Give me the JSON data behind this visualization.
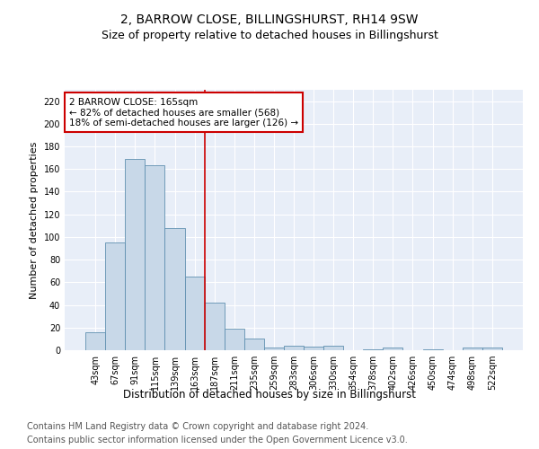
{
  "title": "2, BARROW CLOSE, BILLINGSHURST, RH14 9SW",
  "subtitle": "Size of property relative to detached houses in Billingshurst",
  "xlabel": "Distribution of detached houses by size in Billingshurst",
  "ylabel": "Number of detached properties",
  "categories": [
    "43sqm",
    "67sqm",
    "91sqm",
    "115sqm",
    "139sqm",
    "163sqm",
    "187sqm",
    "211sqm",
    "235sqm",
    "259sqm",
    "283sqm",
    "306sqm",
    "330sqm",
    "354sqm",
    "378sqm",
    "402sqm",
    "426sqm",
    "450sqm",
    "474sqm",
    "498sqm",
    "522sqm"
  ],
  "values": [
    16,
    95,
    169,
    163,
    108,
    65,
    42,
    19,
    10,
    2,
    4,
    3,
    4,
    0,
    1,
    2,
    0,
    1,
    0,
    2,
    2
  ],
  "bar_color": "#c8d8e8",
  "bar_edge_color": "#6090b0",
  "vline_index": 5,
  "vline_color": "#cc0000",
  "annotation_text": "2 BARROW CLOSE: 165sqm\n← 82% of detached houses are smaller (568)\n18% of semi-detached houses are larger (126) →",
  "annotation_box_color": "#ffffff",
  "annotation_border_color": "#cc0000",
  "ylim": [
    0,
    230
  ],
  "yticks": [
    0,
    20,
    40,
    60,
    80,
    100,
    120,
    140,
    160,
    180,
    200,
    220
  ],
  "footer_line1": "Contains HM Land Registry data © Crown copyright and database right 2024.",
  "footer_line2": "Contains public sector information licensed under the Open Government Licence v3.0.",
  "plot_bg_color": "#e8eef8",
  "title_fontsize": 10,
  "subtitle_fontsize": 9,
  "xlabel_fontsize": 8.5,
  "ylabel_fontsize": 8,
  "tick_fontsize": 7,
  "annotation_fontsize": 7.5,
  "footer_fontsize": 7
}
